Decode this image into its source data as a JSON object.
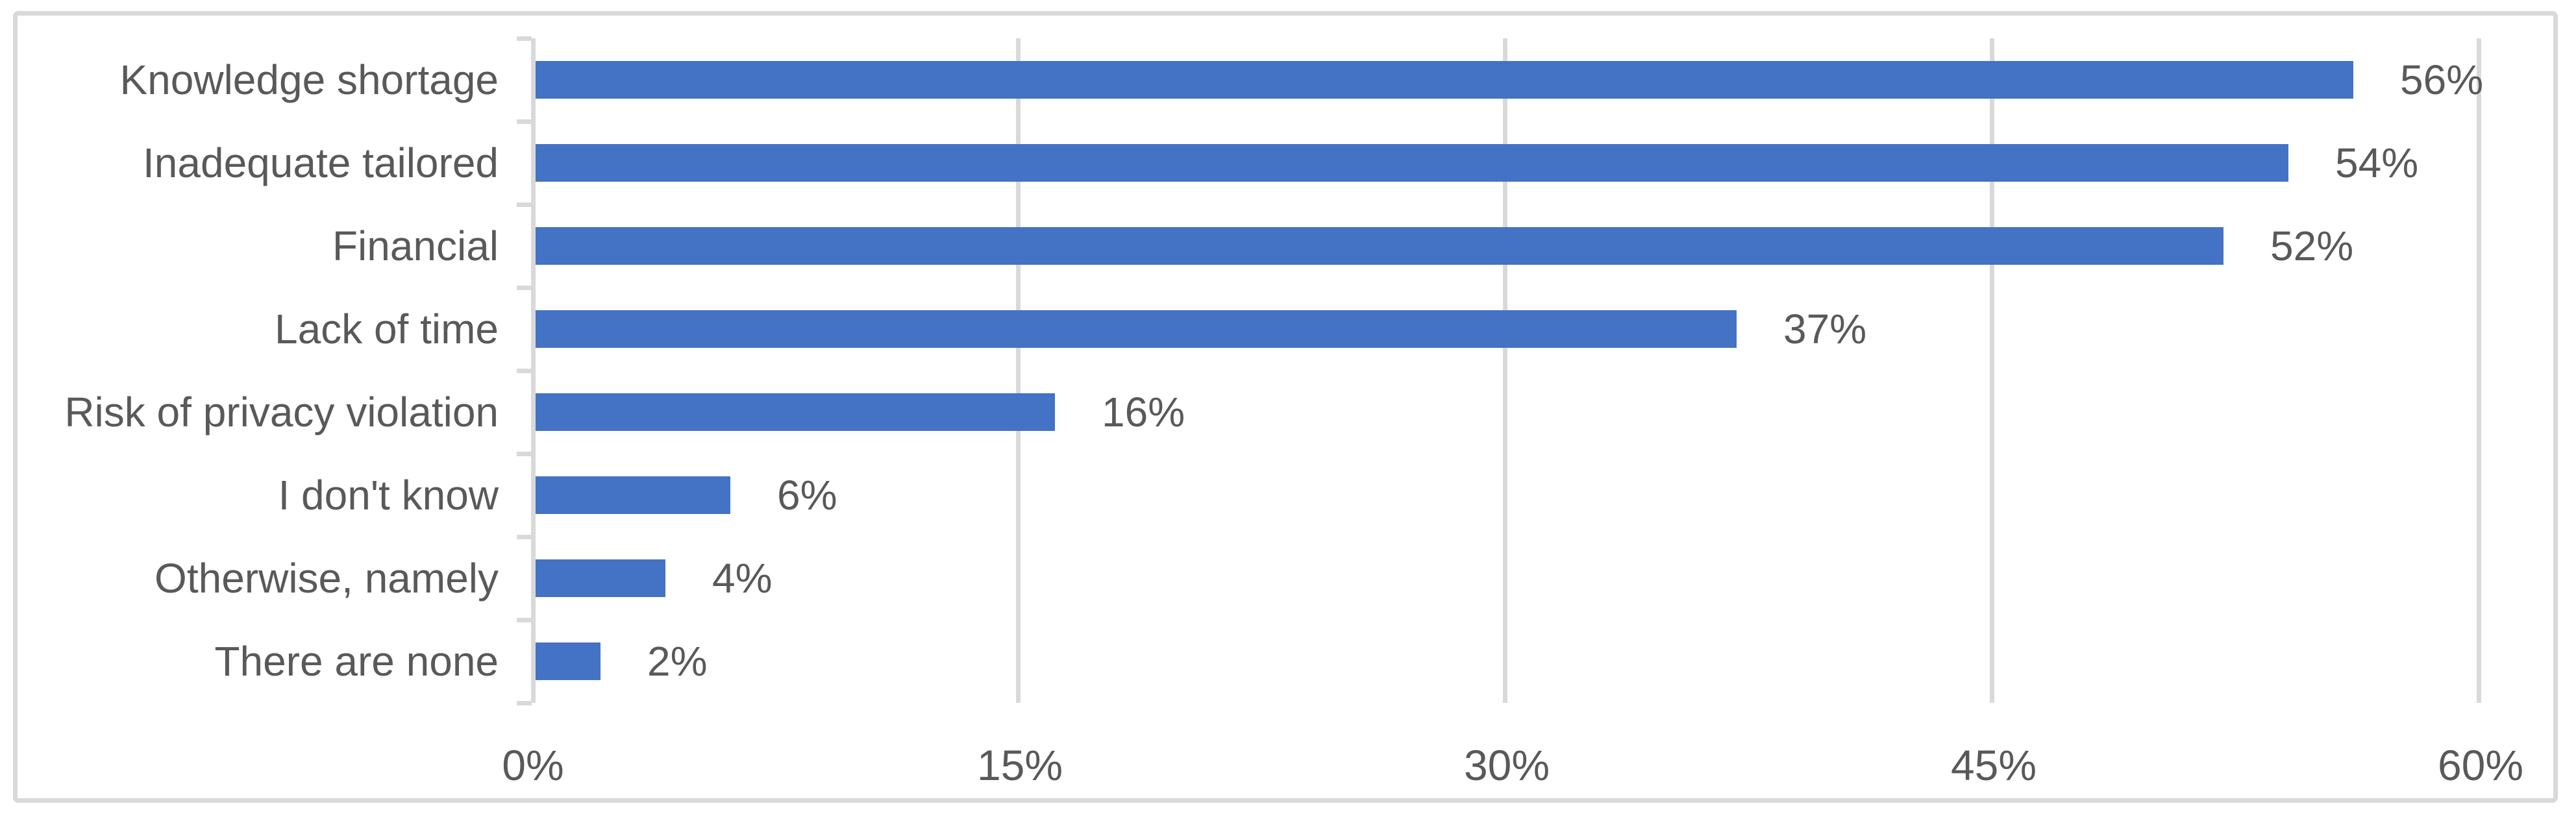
{
  "chart_data": {
    "type": "bar",
    "orientation": "horizontal",
    "title": "",
    "xlabel": "",
    "ylabel": "",
    "categories": [
      "Knowledge shortage",
      "Inadequate tailored",
      "Financial",
      "Lack of time",
      "Risk of privacy violation",
      "I don't know",
      "Otherwise, namely",
      "There are none"
    ],
    "values": [
      56,
      54,
      52,
      37,
      16,
      6,
      4,
      2
    ],
    "value_labels": [
      "56%",
      "54%",
      "52%",
      "37%",
      "16%",
      "6%",
      "4%",
      "2%"
    ],
    "x_ticks": [
      "0%",
      "15%",
      "30%",
      "45%",
      "60%"
    ],
    "x_tick_values": [
      0,
      15,
      30,
      45,
      60
    ],
    "xlim": [
      0,
      60
    ],
    "grid": true,
    "legend": "none",
    "bar_color": "#4472C4",
    "text_color": "#595959",
    "grid_color": "#D9D9D9",
    "frame_color": "#D9D9D9"
  }
}
